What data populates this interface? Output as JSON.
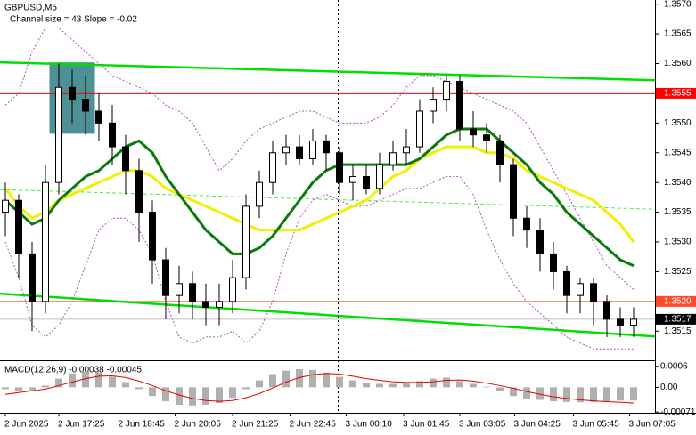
{
  "chart_data": {
    "type": "candlestick",
    "symbol": "GBPUSD,M5",
    "subtitle": "Channel size = 43 Slope = -0.02",
    "candle_color_up": "#ffffff",
    "candle_color_down": "#000000",
    "ohlc": [
      [
        1.3535,
        1.354,
        1.3531,
        1.3537
      ],
      [
        1.3537,
        1.3538,
        1.3524,
        1.3528
      ],
      [
        1.3528,
        1.353,
        1.3515,
        1.352
      ],
      [
        1.352,
        1.3543,
        1.3518,
        1.354
      ],
      [
        1.354,
        1.356,
        1.3538,
        1.3556
      ],
      [
        1.3556,
        1.3559,
        1.355,
        1.3554
      ],
      [
        1.3554,
        1.3558,
        1.3548,
        1.3552
      ],
      [
        1.3552,
        1.3555,
        1.3547,
        1.355
      ],
      [
        1.355,
        1.3553,
        1.3543,
        1.3546
      ],
      [
        1.3546,
        1.3548,
        1.3538,
        1.3542
      ],
      [
        1.3542,
        1.3544,
        1.353,
        1.3535
      ],
      [
        1.3535,
        1.3537,
        1.3523,
        1.3527
      ],
      [
        1.3527,
        1.3529,
        1.3517,
        1.3521
      ],
      [
        1.3521,
        1.3526,
        1.3518,
        1.3523
      ],
      [
        1.3523,
        1.3525,
        1.3517,
        1.352
      ],
      [
        1.352,
        1.3523,
        1.3516,
        1.3519
      ],
      [
        1.3519,
        1.3523,
        1.3516,
        1.352
      ],
      [
        1.352,
        1.3527,
        1.3518,
        1.3524
      ],
      [
        1.3524,
        1.3538,
        1.3522,
        1.3536
      ],
      [
        1.3536,
        1.3542,
        1.3534,
        1.354
      ],
      [
        1.354,
        1.3547,
        1.3538,
        1.3545
      ],
      [
        1.3545,
        1.3548,
        1.3543,
        1.3546
      ],
      [
        1.3546,
        1.3548,
        1.3543,
        1.3544
      ],
      [
        1.3544,
        1.3549,
        1.3543,
        1.3547
      ],
      [
        1.3547,
        1.3548,
        1.3542,
        1.3545
      ],
      [
        1.3545,
        1.3546,
        1.3538,
        1.354
      ],
      [
        1.354,
        1.3543,
        1.3537,
        1.3541
      ],
      [
        1.3541,
        1.3543,
        1.3538,
        1.3539
      ],
      [
        1.3539,
        1.3545,
        1.3538,
        1.3543
      ],
      [
        1.3543,
        1.3547,
        1.3542,
        1.3545
      ],
      [
        1.3545,
        1.3549,
        1.3543,
        1.3546
      ],
      [
        1.3546,
        1.3554,
        1.3545,
        1.3552
      ],
      [
        1.3552,
        1.3556,
        1.355,
        1.3554
      ],
      [
        1.3554,
        1.3558,
        1.3552,
        1.3557
      ],
      [
        1.3557,
        1.3558,
        1.3547,
        1.3549
      ],
      [
        1.3549,
        1.3552,
        1.3546,
        1.3548
      ],
      [
        1.3548,
        1.355,
        1.3545,
        1.3547
      ],
      [
        1.3547,
        1.3548,
        1.354,
        1.3543
      ],
      [
        1.3543,
        1.3544,
        1.3531,
        1.3534
      ],
      [
        1.3534,
        1.3536,
        1.3529,
        1.3532
      ],
      [
        1.3532,
        1.3534,
        1.3525,
        1.3528
      ],
      [
        1.3528,
        1.353,
        1.3522,
        1.3525
      ],
      [
        1.3525,
        1.3526,
        1.3518,
        1.3521
      ],
      [
        1.3521,
        1.3524,
        1.3518,
        1.3523
      ],
      [
        1.3523,
        1.3524,
        1.3516,
        1.352
      ],
      [
        1.352,
        1.3521,
        1.3514,
        1.3517
      ],
      [
        1.3517,
        1.3519,
        1.3514,
        1.3516
      ],
      [
        1.3516,
        1.3519,
        1.3514,
        1.3517
      ]
    ],
    "xlim": [
      -0.4,
      48.6
    ],
    "xticks": [
      {
        "value": 0,
        "label": "2 Jun 2025"
      },
      {
        "value": 4,
        "label": "2 Jun 17:25"
      },
      {
        "value": 8.5,
        "label": "2 Jun 18:45"
      },
      {
        "value": 12.7,
        "label": "2 Jun 20:05"
      },
      {
        "value": 17,
        "label": "2 Jun 21:25"
      },
      {
        "value": 21.3,
        "label": "2 Jun 22:45"
      },
      {
        "value": 25.5,
        "label": "3 Jun 00:10"
      },
      {
        "value": 29.8,
        "label": "3 Jun 01:45"
      },
      {
        "value": 34,
        "label": "3 Jun 03:05"
      },
      {
        "value": 38.1,
        "label": "3 Jun 04:25"
      },
      {
        "value": 42.5,
        "label": "3 Jun 05:45"
      },
      {
        "value": 46.7,
        "label": "3 Jun 07:05"
      }
    ],
    "ylim": [
      1.35101,
      1.35707
    ],
    "yticks": [
      {
        "value": 1.357,
        "label": "1.3570"
      },
      1.3565,
      {
        "value": 1.356,
        "label": "1.3560"
      },
      {
        "value": 1.355,
        "label": "1.3550"
      },
      1.3545,
      {
        "value": 1.354,
        "label": "1.3540"
      },
      1.3535,
      {
        "value": 1.353,
        "label": "1.3530"
      },
      1.3525,
      1.3515
    ],
    "overlays": [
      {
        "color": "#b04cc0",
        "style": "dotted",
        "values": [
          1.3553,
          1.3555,
          1.3562,
          1.3566,
          1.3566,
          1.3564,
          1.3562,
          1.356,
          1.3558,
          1.3557,
          1.3556,
          1.3555,
          1.3553,
          1.3552,
          1.355,
          1.3546,
          1.3542,
          1.3544,
          1.3547,
          1.3549,
          1.355,
          1.3551,
          1.3552,
          1.3552,
          1.3551,
          1.355,
          1.355,
          1.355,
          1.3551,
          1.3553,
          1.3556,
          1.3558,
          1.3558,
          1.3557,
          1.3556,
          1.3555,
          1.3554,
          1.3553,
          1.3552,
          1.355,
          1.3546,
          1.3542,
          1.3538,
          1.3534,
          1.353,
          1.3526,
          1.3524,
          1.3522
        ]
      },
      {
        "color": "#b04cc0",
        "style": "dotted",
        "values": [
          1.353,
          1.3524,
          1.3516,
          1.3514,
          1.3516,
          1.352,
          1.3526,
          1.3532,
          1.3534,
          1.3534,
          1.3532,
          1.3528,
          1.352,
          1.3514,
          1.3513,
          1.3514,
          1.3514,
          1.3515,
          1.3513,
          1.3515,
          1.352,
          1.3528,
          1.3534,
          1.3537,
          1.3538,
          1.3537,
          1.3536,
          1.3536,
          1.3537,
          1.3538,
          1.3539,
          1.3539,
          1.354,
          1.3541,
          1.3541,
          1.3538,
          1.3532,
          1.3527,
          1.3523,
          1.352,
          1.3518,
          1.3516,
          1.3514,
          1.3513,
          1.3512,
          1.3512,
          1.3512,
          1.3512
        ]
      },
      {
        "color": "#f0f000",
        "style": "solid",
        "values": [
          1.3539,
          1.3536,
          1.3534,
          1.3535,
          1.3537,
          1.3538,
          1.3539,
          1.354,
          1.3541,
          1.3542,
          1.3542,
          1.3541,
          1.3539,
          1.3538,
          1.3537,
          1.3536,
          1.3535,
          1.3534,
          1.3533,
          1.3532,
          1.3532,
          1.3532,
          1.3532,
          1.3533,
          1.3534,
          1.3535,
          1.3536,
          1.3537,
          1.3539,
          1.3541,
          1.3542,
          1.3544,
          1.3545,
          1.3546,
          1.3546,
          1.3546,
          1.3545,
          1.3545,
          1.3544,
          1.3542,
          1.3541,
          1.354,
          1.3539,
          1.3538,
          1.3537,
          1.3535,
          1.3533,
          1.353
        ]
      },
      {
        "color": "#0a7a0a",
        "style": "solid",
        "values": [
          1.3537,
          1.3535,
          1.3533,
          1.3534,
          1.3537,
          1.3539,
          1.3541,
          1.3542,
          1.3544,
          1.3546,
          1.3547,
          1.3545,
          1.3541,
          1.3538,
          1.3535,
          1.3532,
          1.353,
          1.3528,
          1.3528,
          1.3529,
          1.3531,
          1.3534,
          1.3537,
          1.354,
          1.3542,
          1.3543,
          1.3543,
          1.3543,
          1.3543,
          1.3543,
          1.3543,
          1.3544,
          1.3546,
          1.3548,
          1.3549,
          1.3549,
          1.3549,
          1.3547,
          1.3545,
          1.3543,
          1.354,
          1.3538,
          1.3535,
          1.3533,
          1.3531,
          1.3529,
          1.3527,
          1.3526
        ]
      }
    ],
    "channel": {
      "color": "#00e000",
      "x": [
        -0.4,
        48.6
      ],
      "upper": [
        1.35602,
        1.35572
      ],
      "middle": [
        1.35388,
        1.35355
      ],
      "lower": [
        1.35213,
        1.35141
      ]
    },
    "box": {
      "color": "#2e7d84",
      "x": [
        3.3,
        6.7
      ],
      "y": [
        1.35482,
        1.35602
      ]
    },
    "vline": 24.9,
    "levels": [
      {
        "value": 1.3555,
        "label": "1.3555",
        "color": "#ff0000"
      },
      {
        "value": 1.352,
        "label": "1.3520",
        "color": "#ff4a2a"
      },
      {
        "value": 1.3517,
        "label": "1.3517",
        "color": "#000000"
      }
    ],
    "macd": {
      "label": "MACD(12,26,9) -0.00038 -0.00045",
      "ylim": [
        -0.00073,
        0.00075
      ],
      "yticks": [
        0.0006,
        {
          "value": 0,
          "label": "0.00"
        },
        -0.00071
      ],
      "hist_color": "#b0b0b0",
      "signal_color": "#e00000",
      "histogram": [
        -5e-05,
        -0.0001,
        -0.00012,
        5e-05,
        0.00025,
        0.0004,
        0.00045,
        0.00042,
        0.0003,
        0.00015,
        -5e-05,
        -0.00025,
        -0.0004,
        -0.0005,
        -0.00052,
        -0.0005,
        -0.00045,
        -0.0003,
        -5e-05,
        0.0002,
        0.00038,
        0.00048,
        0.00052,
        0.0005,
        0.00042,
        0.0003,
        0.0002,
        0.00012,
        0.0001,
        0.0001,
        0.00012,
        0.00018,
        0.00025,
        0.00028,
        0.00018,
        0.0001,
        2e-05,
        -0.0001,
        -0.00025,
        -0.00032,
        -0.00036,
        -0.0004,
        -0.00042,
        -0.00043,
        -0.00042,
        -0.0004,
        -0.00038,
        -0.00038
      ],
      "signal": [
        -0.0002,
        -0.00015,
        -0.0001,
        -5e-05,
        5e-05,
        0.00015,
        0.00025,
        0.00032,
        0.00033,
        0.00028,
        0.00018,
        5e-05,
        -0.0001,
        -0.00022,
        -0.00032,
        -0.00038,
        -0.0004,
        -0.00038,
        -0.0003,
        -0.00018,
        -2e-05,
        0.00015,
        0.00028,
        0.00036,
        0.0004,
        0.00038,
        0.00032,
        0.00025,
        0.0002,
        0.00016,
        0.00014,
        0.00014,
        0.00016,
        0.0002,
        0.00021,
        0.00018,
        0.00012,
        5e-05,
        -3e-05,
        -0.00012,
        -0.0002,
        -0.00027,
        -0.00032,
        -0.00036,
        -0.00039,
        -0.00041,
        -0.00043,
        -0.00045
      ]
    }
  }
}
